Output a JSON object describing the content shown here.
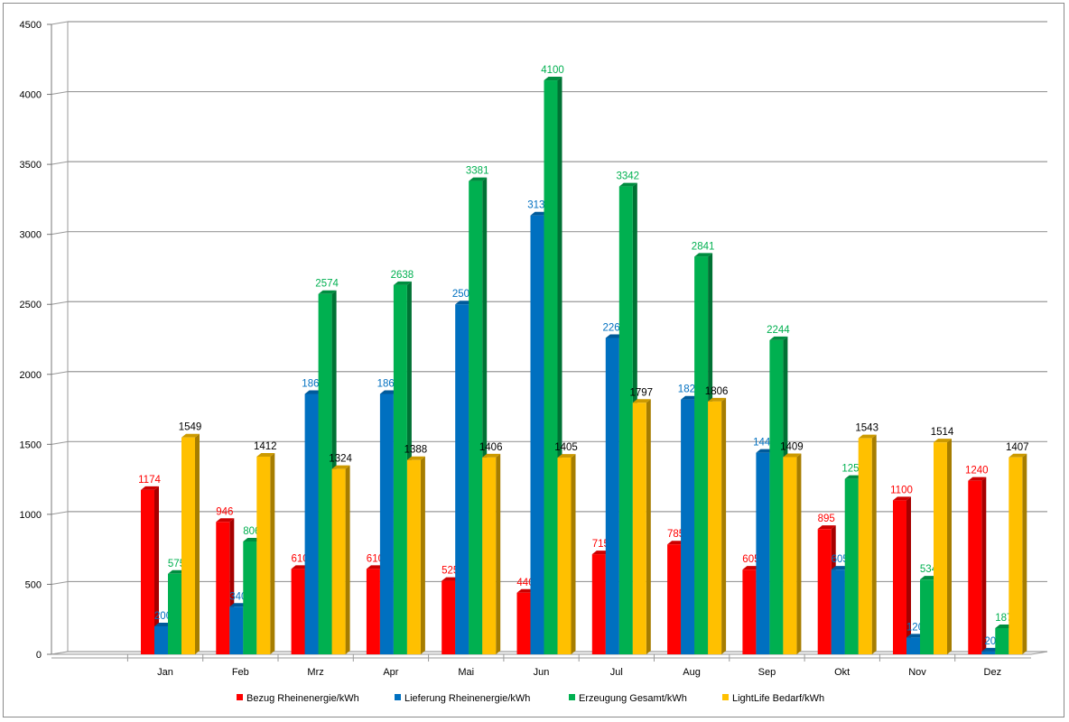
{
  "chart_data": {
    "type": "bar",
    "style": "3d-clustered-column",
    "categories": [
      "Jan",
      "Feb",
      "Mrz",
      "Apr",
      "Mai",
      "Jun",
      "Jul",
      "Aug",
      "Sep",
      "Okt",
      "Nov",
      "Dez"
    ],
    "series": [
      {
        "name": "Bezug Rheinenergie/kWh",
        "color": "#ff0000",
        "label_color": "#ff0000",
        "values": [
          1174,
          946,
          610,
          610,
          525,
          440,
          715,
          785,
          605,
          895,
          1100,
          1240
        ]
      },
      {
        "name": "Lieferung Rheinenergie/kWh",
        "color": "#0070c0",
        "label_color": "#0070c0",
        "values": [
          200,
          340,
          1860,
          1860,
          2500,
          3135,
          2260,
          1820,
          1440,
          605,
          120,
          20
        ]
      },
      {
        "name": "Erzeugung Gesamt/kWh",
        "color": "#00b050",
        "label_color": "#00b050",
        "values": [
          575,
          806,
          2574,
          2638,
          3381,
          4100,
          3342,
          2841,
          2244,
          1253,
          534,
          187
        ]
      },
      {
        "name": "LightLife Bedarf/kWh",
        "color": "#ffc000",
        "label_color": "#000000",
        "values": [
          1549,
          1412,
          1324,
          1388,
          1406,
          1405,
          1797,
          1806,
          1409,
          1543,
          1514,
          1407
        ]
      }
    ],
    "yticks": [
      0,
      500,
      1000,
      1500,
      2000,
      2500,
      3000,
      3500,
      4000,
      4500
    ],
    "ylim": [
      0,
      4500
    ],
    "grid": true,
    "legend_position": "bottom",
    "data_labels": true
  }
}
